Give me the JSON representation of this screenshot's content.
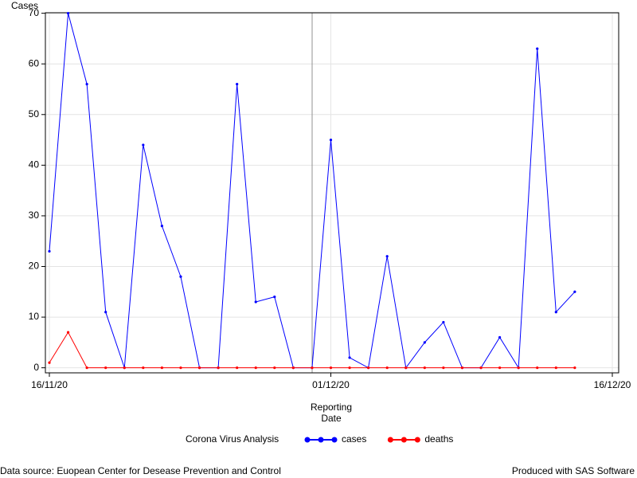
{
  "chart_data": {
    "type": "line",
    "y_label": "Cases",
    "x_label": "Reporting Date",
    "legend_title": "Corona Virus Analysis",
    "footnote_left": "Data source: Euopean Center for Desease Prevention and Control",
    "footnote_right": "Produced with SAS Software",
    "x": [
      "16/11/20",
      "17/11/20",
      "18/11/20",
      "19/11/20",
      "20/11/20",
      "21/11/20",
      "22/11/20",
      "23/11/20",
      "24/11/20",
      "25/11/20",
      "26/11/20",
      "27/11/20",
      "28/11/20",
      "29/11/20",
      "30/11/20",
      "01/12/20",
      "02/12/20",
      "03/12/20",
      "04/12/20",
      "05/12/20",
      "06/12/20",
      "07/12/20",
      "08/12/20",
      "09/12/20",
      "10/12/20",
      "11/12/20",
      "12/12/20",
      "13/12/20",
      "14/12/20"
    ],
    "series": [
      {
        "name": "cases",
        "color": "#0000ff",
        "values": [
          23,
          70,
          56,
          11,
          0,
          44,
          28,
          18,
          0,
          0,
          56,
          13,
          14,
          0,
          0,
          45,
          2,
          0,
          22,
          0,
          5,
          9,
          0,
          0,
          6,
          0,
          63,
          11,
          15
        ]
      },
      {
        "name": "deaths",
        "color": "#ff0000",
        "values": [
          1,
          7,
          0,
          0,
          0,
          0,
          0,
          0,
          0,
          0,
          0,
          0,
          0,
          0,
          0,
          0,
          0,
          0,
          0,
          0,
          0,
          0,
          0,
          0,
          0,
          0,
          0,
          0,
          0
        ]
      }
    ],
    "xlim": [
      "16/11/20",
      "16/12/20"
    ],
    "xticks": [
      "16/11/20",
      "01/12/20",
      "16/12/20"
    ],
    "ylim": [
      -1,
      70.1
    ],
    "yticks": [
      0,
      10,
      20,
      30,
      40,
      50,
      60,
      70
    ],
    "grid": true
  }
}
